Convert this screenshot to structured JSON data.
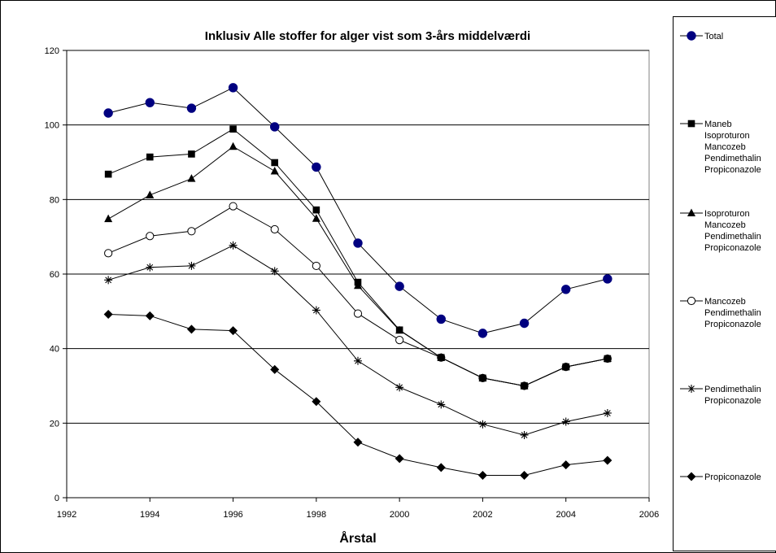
{
  "chart_data": {
    "type": "line",
    "title": "Inklusiv Alle stoffer for alger vist som 3-års middelværdi",
    "xlabel": "Årstal",
    "ylabel": "",
    "xlim": [
      1992,
      2006
    ],
    "ylim": [
      0,
      120
    ],
    "xticks": [
      1992,
      1994,
      1996,
      1998,
      2000,
      2002,
      2004,
      2006
    ],
    "yticks": [
      0,
      20,
      40,
      60,
      80,
      100,
      120
    ],
    "grid": "horizontal",
    "legend_position": "right",
    "series": [
      {
        "name": "Total",
        "legend_lines": [
          "Total"
        ],
        "marker": "circle-filled",
        "color": "#000080",
        "points": [
          [
            1993,
            103.2
          ],
          [
            1994,
            106.0
          ],
          [
            1995,
            104.5
          ],
          [
            1996,
            110.0
          ],
          [
            1997,
            99.5
          ],
          [
            1998,
            88.7
          ],
          [
            1999,
            68.3
          ],
          [
            2000,
            56.7
          ],
          [
            2001,
            47.9
          ],
          [
            2002,
            44.1
          ],
          [
            2003,
            46.8
          ],
          [
            2004,
            55.9
          ],
          [
            2005,
            58.7
          ]
        ]
      },
      {
        "name": "Maneb Isoproturon Mancozeb Pendimethalin Propiconazole",
        "legend_lines": [
          "Maneb",
          "Isoproturon",
          "Mancozeb",
          "Pendimethalin",
          "Propiconazole"
        ],
        "marker": "square",
        "color": "#000000",
        "points": [
          [
            1993,
            86.8
          ],
          [
            1994,
            91.4
          ],
          [
            1995,
            92.2
          ],
          [
            1996,
            98.9
          ],
          [
            1997,
            89.9
          ],
          [
            1998,
            77.2
          ],
          [
            1999,
            57.8
          ],
          [
            2000,
            45.0
          ],
          [
            2001,
            37.6
          ],
          [
            2002,
            32.1
          ],
          [
            2003,
            30.0
          ],
          [
            2004,
            35.1
          ],
          [
            2005,
            37.3
          ]
        ]
      },
      {
        "name": "Isoproturon Mancozeb Pendimethalin Propiconazole",
        "legend_lines": [
          "Isoproturon",
          "Mancozeb",
          "Pendimethalin",
          "Propiconazole"
        ],
        "marker": "triangle",
        "color": "#000000",
        "points": [
          [
            1993,
            74.8
          ],
          [
            1994,
            81.2
          ],
          [
            1995,
            85.6
          ],
          [
            1996,
            94.2
          ],
          [
            1997,
            87.6
          ],
          [
            1998,
            74.9
          ],
          [
            1999,
            56.9
          ],
          [
            2000,
            44.9
          ],
          [
            2001,
            37.6
          ],
          [
            2002,
            32.1
          ],
          [
            2003,
            30.0
          ],
          [
            2004,
            35.1
          ],
          [
            2005,
            37.3
          ]
        ]
      },
      {
        "name": "Mancozeb Pendimethalin Propiconazole",
        "legend_lines": [
          "Mancozeb",
          "Pendimethalin",
          "Propiconazole"
        ],
        "marker": "circle-open",
        "color": "#000000",
        "points": [
          [
            1993,
            65.6
          ],
          [
            1994,
            70.2
          ],
          [
            1995,
            71.5
          ],
          [
            1996,
            78.2
          ],
          [
            1997,
            72.0
          ],
          [
            1998,
            62.2
          ],
          [
            1999,
            49.4
          ],
          [
            2000,
            42.3
          ],
          [
            2001,
            37.6
          ],
          [
            2002,
            32.1
          ],
          [
            2003,
            30.0
          ],
          [
            2004,
            35.1
          ],
          [
            2005,
            37.3
          ]
        ]
      },
      {
        "name": "Pendimethalin Propiconazole",
        "legend_lines": [
          "Pendimethalin",
          "Propiconazole"
        ],
        "marker": "star",
        "color": "#000000",
        "points": [
          [
            1993,
            58.4
          ],
          [
            1994,
            61.8
          ],
          [
            1995,
            62.2
          ],
          [
            1996,
            67.7
          ],
          [
            1997,
            60.8
          ],
          [
            1998,
            50.3
          ],
          [
            1999,
            36.7
          ],
          [
            2000,
            29.6
          ],
          [
            2001,
            25.0
          ],
          [
            2002,
            19.7
          ],
          [
            2003,
            16.8
          ],
          [
            2004,
            20.4
          ],
          [
            2005,
            22.7
          ]
        ]
      },
      {
        "name": "Propiconazole",
        "legend_lines": [
          "Propiconazole"
        ],
        "marker": "diamond",
        "color": "#000000",
        "points": [
          [
            1993,
            49.2
          ],
          [
            1994,
            48.8
          ],
          [
            1995,
            45.2
          ],
          [
            1996,
            44.8
          ],
          [
            1997,
            34.4
          ],
          [
            1998,
            25.8
          ],
          [
            1999,
            14.9
          ],
          [
            2000,
            10.5
          ],
          [
            2001,
            8.1
          ],
          [
            2002,
            6.0
          ],
          [
            2003,
            6.0
          ],
          [
            2004,
            8.8
          ],
          [
            2005,
            10.0
          ]
        ]
      }
    ]
  }
}
